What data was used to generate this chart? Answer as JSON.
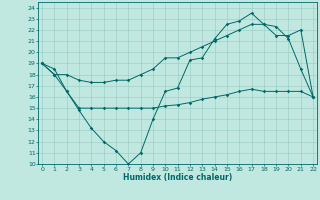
{
  "title": "",
  "xlabel": "Humidex (Indice chaleur)",
  "bg_color": "#c0e8e0",
  "grid_color": "#98c8c0",
  "line_color": "#006868",
  "xlim": [
    -0.3,
    22.3
  ],
  "ylim": [
    10,
    24.5
  ],
  "xticks": [
    0,
    1,
    2,
    3,
    4,
    5,
    6,
    7,
    8,
    9,
    10,
    11,
    12,
    13,
    14,
    15,
    16,
    17,
    18,
    19,
    20,
    21,
    22
  ],
  "yticks": [
    10,
    11,
    12,
    13,
    14,
    15,
    16,
    17,
    18,
    19,
    20,
    21,
    22,
    23,
    24
  ],
  "line1_x": [
    0,
    1,
    2,
    3,
    4,
    5,
    6,
    7,
    8,
    9,
    10,
    11,
    12,
    13,
    14,
    15,
    16,
    17,
    18,
    19,
    20,
    21,
    22
  ],
  "line1_y": [
    19.0,
    18.5,
    16.5,
    14.8,
    13.2,
    12.0,
    11.2,
    10.0,
    11.0,
    14.0,
    16.5,
    16.8,
    19.3,
    19.5,
    21.2,
    22.5,
    22.8,
    23.5,
    22.5,
    22.3,
    21.2,
    18.5,
    16.0
  ],
  "line2_x": [
    0,
    1,
    2,
    3,
    4,
    5,
    6,
    7,
    8,
    9,
    10,
    11,
    12,
    13,
    14,
    15,
    16,
    17,
    18,
    19,
    20,
    21,
    22
  ],
  "line2_y": [
    19.0,
    18.0,
    18.0,
    17.5,
    17.3,
    17.3,
    17.5,
    17.5,
    18.0,
    18.5,
    19.5,
    19.5,
    20.0,
    20.5,
    21.0,
    21.5,
    22.0,
    22.5,
    22.5,
    21.5,
    21.5,
    22.0,
    16.0
  ],
  "line3_x": [
    0,
    1,
    2,
    3,
    4,
    5,
    6,
    7,
    8,
    9,
    10,
    11,
    12,
    13,
    14,
    15,
    16,
    17,
    18,
    19,
    20,
    21,
    22
  ],
  "line3_y": [
    19.0,
    18.0,
    16.5,
    15.0,
    15.0,
    15.0,
    15.0,
    15.0,
    15.0,
    15.0,
    15.2,
    15.3,
    15.5,
    15.8,
    16.0,
    16.2,
    16.5,
    16.7,
    16.5,
    16.5,
    16.5,
    16.5,
    16.0
  ],
  "marker_size": 1.8,
  "line_width": 0.7,
  "tick_fontsize": 4.5,
  "xlabel_fontsize": 5.5
}
